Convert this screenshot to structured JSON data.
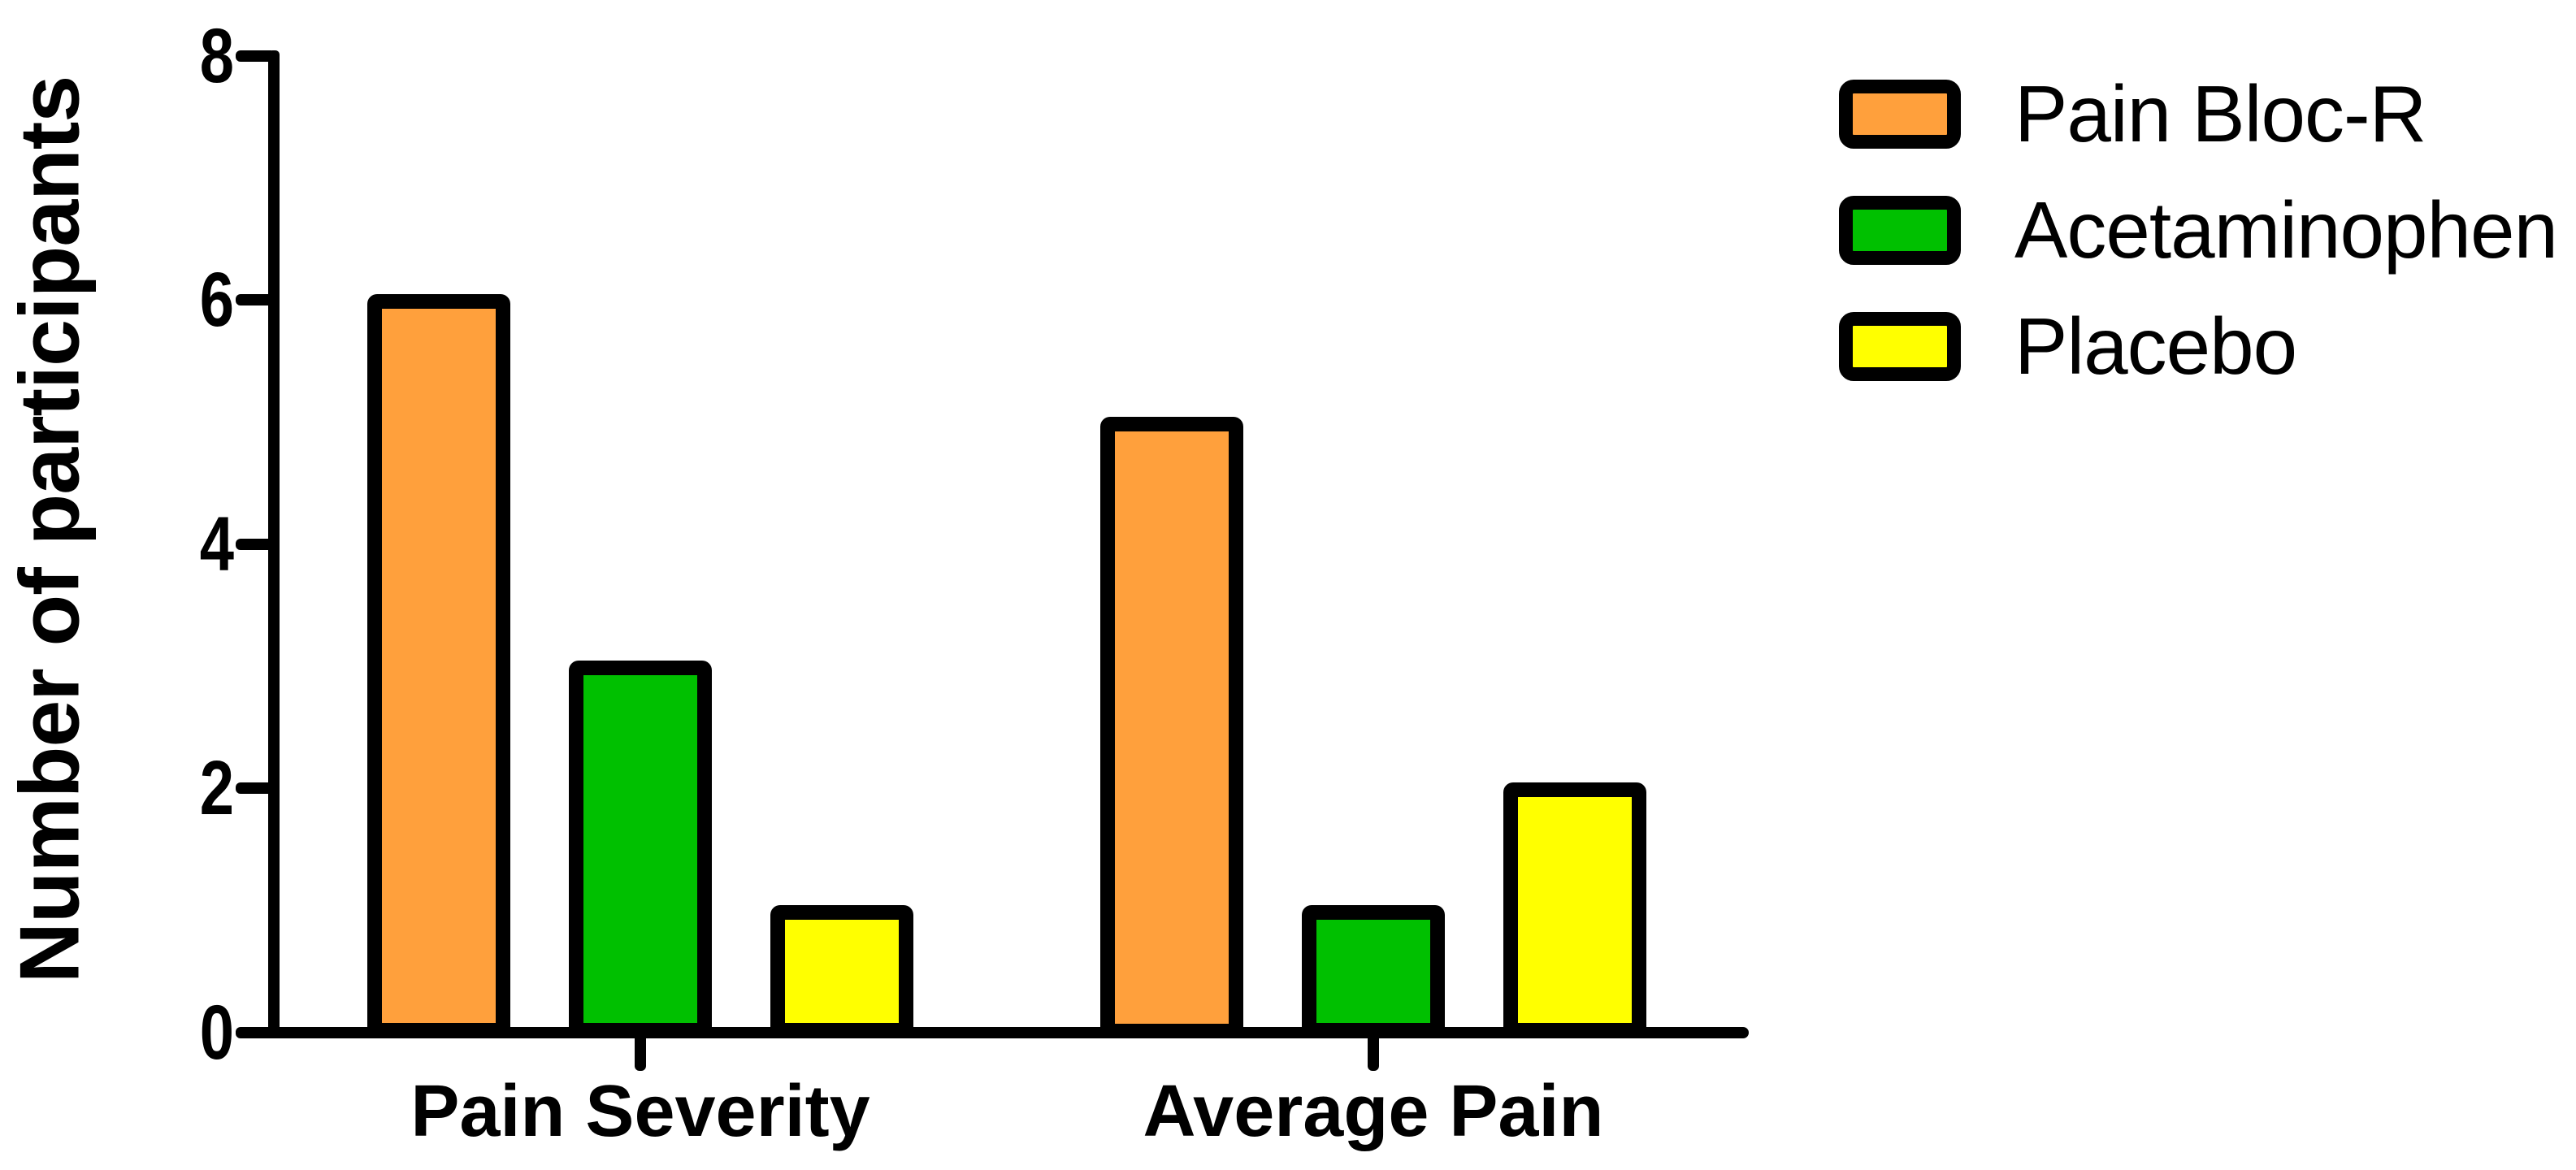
{
  "chart_data": {
    "type": "bar",
    "title": "",
    "categories": [
      "Pain Severity",
      "Average Pain"
    ],
    "series": [
      {
        "name": "Pain Bloc-R",
        "color": "#FFA03C",
        "values": [
          6,
          5
        ]
      },
      {
        "name": "Acetaminophen",
        "color": "#00C000",
        "values": [
          3,
          1
        ]
      },
      {
        "name": "Placebo",
        "color": "#FFFF00",
        "values": [
          1,
          2
        ]
      }
    ],
    "xlabel": "",
    "ylabel": "Number of participants",
    "ylim": [
      0,
      8
    ],
    "yticks": [
      0,
      2,
      4,
      6,
      8
    ],
    "grid": false,
    "legend_position": "top-right",
    "axis_color": "#000000",
    "bar_border_color": "#000000",
    "background": "#FFFFFF"
  }
}
